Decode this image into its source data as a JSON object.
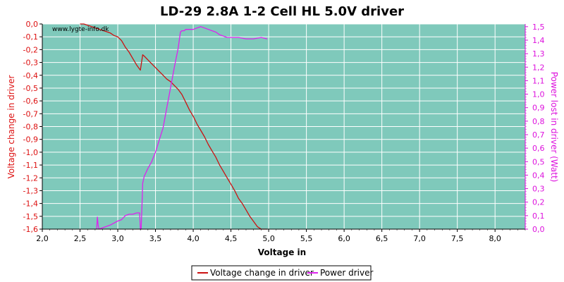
{
  "chart_data": {
    "type": "line",
    "title": "LD-29 2.8A 1-2 Cell HL 5.0V driver",
    "watermark": "www.lygte-info.dk",
    "xlabel": "Voltage in",
    "ylabel_left": "Voltage change in driver",
    "ylabel_right": "Power lost in driver (Watt)",
    "xlim": [
      2.0,
      8.4
    ],
    "ylim_left": [
      -1.6,
      0.0
    ],
    "ylim_right": [
      0.0,
      1.52
    ],
    "x_ticks": [
      "2,0",
      "2,5",
      "3,0",
      "3,5",
      "4,0",
      "4,5",
      "5,0",
      "5,5",
      "6,0",
      "6,5",
      "7,0",
      "7,5",
      "8,0"
    ],
    "y_left_ticks": [
      "0,0",
      "-0,1",
      "-0,2",
      "-0,3",
      "-0,4",
      "-0,5",
      "-0,6",
      "-0,7",
      "-0,8",
      "-0,9",
      "-1,0",
      "-1,1",
      "-1,2",
      "-1,3",
      "-1,4",
      "-1,5",
      "-1,6"
    ],
    "y_right_ticks": [
      "0,0",
      "0,1",
      "0,2",
      "0,3",
      "0,4",
      "0,5",
      "0,6",
      "0,7",
      "0,8",
      "0,9",
      "1,0",
      "1,1",
      "1,2",
      "1,3",
      "1,4",
      "1,5"
    ],
    "grid": true,
    "legend_position": "bottom-center",
    "colors": {
      "plot_bg": "#7fc9bb",
      "grid": "#ffffff",
      "series_voltage": "#cc1111",
      "series_power": "#dd22ee",
      "left_axis_text": "#dd1111",
      "right_axis_text": "#dd11dd"
    },
    "series": [
      {
        "name": "Voltage change in driver",
        "axis": "left",
        "x": [
          2.5,
          2.55,
          2.6,
          2.65,
          2.7,
          2.75,
          2.8,
          2.85,
          2.9,
          2.95,
          3.0,
          3.05,
          3.1,
          3.15,
          3.2,
          3.25,
          3.3,
          3.33,
          3.35,
          3.4,
          3.45,
          3.5,
          3.55,
          3.6,
          3.65,
          3.7,
          3.75,
          3.8,
          3.85,
          3.9,
          3.95,
          4.0,
          4.05,
          4.1,
          4.15,
          4.2,
          4.25,
          4.3,
          4.35,
          4.4,
          4.45,
          4.5,
          4.55,
          4.6,
          4.65,
          4.7,
          4.75,
          4.8,
          4.85,
          4.9,
          4.95,
          4.98
        ],
        "y": [
          0.0,
          0.0,
          -0.01,
          -0.02,
          -0.03,
          -0.04,
          -0.05,
          -0.06,
          -0.07,
          -0.09,
          -0.1,
          -0.13,
          -0.18,
          -0.22,
          -0.27,
          -0.32,
          -0.36,
          -0.24,
          -0.25,
          -0.28,
          -0.31,
          -0.34,
          -0.37,
          -0.4,
          -0.43,
          -0.45,
          -0.48,
          -0.51,
          -0.55,
          -0.61,
          -0.67,
          -0.72,
          -0.78,
          -0.83,
          -0.88,
          -0.94,
          -0.99,
          -1.04,
          -1.1,
          -1.15,
          -1.2,
          -1.25,
          -1.3,
          -1.36,
          -1.4,
          -1.45,
          -1.5,
          -1.54,
          -1.58,
          -1.6,
          -1.6,
          -1.6
        ]
      },
      {
        "name": "Power driver",
        "axis": "right",
        "x": [
          2.72,
          2.73,
          2.74,
          2.75,
          2.8,
          2.9,
          3.0,
          3.05,
          3.1,
          3.15,
          3.2,
          3.25,
          3.29,
          3.3,
          3.31,
          3.32,
          3.33,
          3.35,
          3.4,
          3.45,
          3.5,
          3.55,
          3.6,
          3.65,
          3.7,
          3.75,
          3.8,
          3.83,
          3.85,
          3.88,
          3.9,
          3.95,
          4.0,
          4.05,
          4.1,
          4.15,
          4.2,
          4.25,
          4.3,
          4.35,
          4.4,
          4.45,
          4.5,
          4.6,
          4.7,
          4.8,
          4.9,
          4.98
        ],
        "y": [
          0.0,
          0.09,
          0.03,
          0.0,
          0.01,
          0.03,
          0.06,
          0.07,
          0.1,
          0.11,
          0.11,
          0.12,
          0.12,
          0.0,
          0.0,
          0.16,
          0.34,
          0.39,
          0.45,
          0.5,
          0.57,
          0.66,
          0.75,
          0.9,
          1.05,
          1.2,
          1.34,
          1.46,
          1.47,
          1.47,
          1.48,
          1.48,
          1.48,
          1.49,
          1.5,
          1.49,
          1.48,
          1.47,
          1.46,
          1.44,
          1.43,
          1.42,
          1.42,
          1.42,
          1.41,
          1.41,
          1.42,
          1.41
        ]
      }
    ]
  }
}
